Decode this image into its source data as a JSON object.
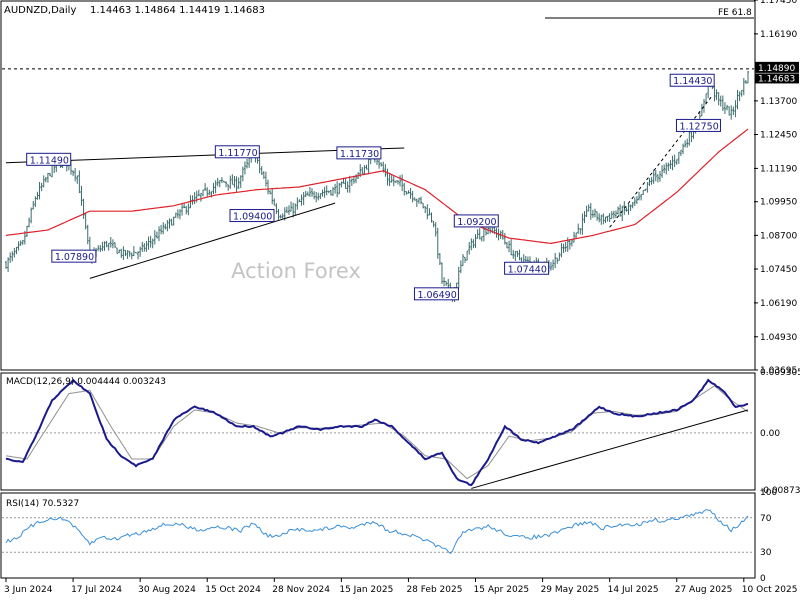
{
  "header": {
    "symbol": "AUDNZD,Daily",
    "ohlc": "1.14463 1.14864 1.14419 1.14683"
  },
  "watermark": "Action Forex",
  "colors": {
    "candle": "#3a6b6b",
    "ma": "#e0202a",
    "macd_line": "#1a1a8c",
    "macd_signal": "#909090",
    "rsi_line": "#3a8fd8",
    "label_box": "#1a1a8c",
    "price_marker": "#000000"
  },
  "chart_data": [
    {
      "type": "candlestick",
      "name": "price",
      "ylim": [
        1.03695,
        1.1745
      ],
      "y_ticks": [
        "1.17450",
        "1.16190",
        "1.14890",
        "1.13700",
        "1.12450",
        "1.11190",
        "1.09950",
        "1.08700",
        "1.07450",
        "1.06190",
        "1.04930",
        "1.03695"
      ],
      "current_price_label": "1.14890",
      "last_price_label": "1.14683",
      "fib_label": "FE 61.8",
      "fib_level": 1.1678,
      "price_keypoints": [
        [
          0,
          1.0765
        ],
        [
          8,
          1.084
        ],
        [
          14,
          1.101
        ],
        [
          22,
          1.1118
        ],
        [
          28,
          1.1149
        ],
        [
          34,
          1.109
        ],
        [
          40,
          1.0789
        ],
        [
          48,
          1.084
        ],
        [
          56,
          1.08
        ],
        [
          64,
          1.081
        ],
        [
          72,
          1.087
        ],
        [
          80,
          1.093
        ],
        [
          88,
          1.099
        ],
        [
          95,
          1.103
        ],
        [
          103,
          1.107
        ],
        [
          110,
          1.106
        ],
        [
          118,
          1.1177
        ],
        [
          124,
          1.106
        ],
        [
          130,
          1.095
        ],
        [
          136,
          1.096
        ],
        [
          142,
          1.101
        ],
        [
          150,
          1.103
        ],
        [
          157,
          1.104
        ],
        [
          163,
          1.106
        ],
        [
          170,
          1.111
        ],
        [
          176,
          1.1173
        ],
        [
          182,
          1.108
        ],
        [
          188,
          1.106
        ],
        [
          194,
          1.102
        ],
        [
          200,
          1.097
        ],
        [
          204,
          1.092
        ],
        [
          208,
          1.07
        ],
        [
          213,
          1.0649
        ],
        [
          218,
          1.078
        ],
        [
          224,
          1.086
        ],
        [
          230,
          1.09
        ],
        [
          236,
          1.087
        ],
        [
          242,
          1.08
        ],
        [
          248,
          1.077
        ],
        [
          254,
          1.0765
        ],
        [
          260,
          1.076
        ],
        [
          266,
          1.082
        ],
        [
          272,
          1.088
        ],
        [
          278,
          1.096
        ],
        [
          284,
          1.093
        ],
        [
          290,
          1.095
        ],
        [
          296,
          1.0965
        ],
        [
          302,
          1.1
        ],
        [
          308,
          1.108
        ],
        [
          314,
          1.111
        ],
        [
          320,
          1.116
        ],
        [
          326,
          1.124
        ],
        [
          331,
          1.13
        ],
        [
          335,
          1.1443
        ],
        [
          340,
          1.137
        ],
        [
          346,
          1.132
        ],
        [
          350,
          1.14
        ],
        [
          354,
          1.1468
        ]
      ],
      "ma": [
        [
          0,
          1.087
        ],
        [
          20,
          1.089
        ],
        [
          40,
          1.096
        ],
        [
          60,
          1.096
        ],
        [
          80,
          1.098
        ],
        [
          100,
          1.102
        ],
        [
          120,
          1.104
        ],
        [
          140,
          1.105
        ],
        [
          160,
          1.108
        ],
        [
          180,
          1.111
        ],
        [
          200,
          1.104
        ],
        [
          220,
          1.092
        ],
        [
          240,
          1.086
        ],
        [
          260,
          1.084
        ],
        [
          280,
          1.087
        ],
        [
          300,
          1.091
        ],
        [
          320,
          1.103
        ],
        [
          340,
          1.118
        ],
        [
          354,
          1.1265
        ]
      ],
      "labels": [
        {
          "text": "1.11490",
          "i": 28,
          "price": 1.1149
        },
        {
          "text": "1.07890",
          "i": 40,
          "price": 1.0789
        },
        {
          "text": "1.11770",
          "i": 118,
          "price": 1.1177
        },
        {
          "text": "1.09400",
          "i": 125,
          "price": 1.094
        },
        {
          "text": "1.11730",
          "i": 176,
          "price": 1.1173
        },
        {
          "text": "1.09200",
          "i": 232,
          "price": 1.092
        },
        {
          "text": "1.06490",
          "i": 213,
          "price": 1.0649
        },
        {
          "text": "1.07440",
          "i": 256,
          "price": 1.0744
        },
        {
          "text": "1.14430",
          "i": 335,
          "price": 1.1443
        },
        {
          "text": "1.12750",
          "i": 338,
          "price": 1.1275
        }
      ]
    },
    {
      "type": "line",
      "name": "MACD(12,26,9) 0.004444 0.003243",
      "title": "MACD(12,26,9) 0.004444 0.003243",
      "ylim": [
        -0.008737,
        0.009305
      ],
      "y_ticks": [
        "0.009305",
        "0.00",
        "-0.008737"
      ],
      "macd": [
        [
          0,
          -0.004
        ],
        [
          8,
          -0.0045
        ],
        [
          15,
          0.0
        ],
        [
          22,
          0.005
        ],
        [
          32,
          0.008
        ],
        [
          40,
          0.006
        ],
        [
          48,
          -0.001
        ],
        [
          55,
          -0.0035
        ],
        [
          62,
          -0.005
        ],
        [
          70,
          -0.004
        ],
        [
          80,
          0.002
        ],
        [
          90,
          0.004
        ],
        [
          100,
          0.003
        ],
        [
          110,
          0.001
        ],
        [
          118,
          0.001
        ],
        [
          126,
          -0.0005
        ],
        [
          132,
          0.0
        ],
        [
          140,
          0.001
        ],
        [
          150,
          0.0005
        ],
        [
          160,
          0.001
        ],
        [
          170,
          0.001
        ],
        [
          176,
          0.002
        ],
        [
          184,
          0.001
        ],
        [
          192,
          -0.0015
        ],
        [
          200,
          -0.004
        ],
        [
          208,
          -0.003
        ],
        [
          215,
          -0.007
        ],
        [
          222,
          -0.008
        ],
        [
          230,
          -0.004
        ],
        [
          238,
          0.001
        ],
        [
          246,
          -0.001
        ],
        [
          254,
          -0.0015
        ],
        [
          262,
          -0.0005
        ],
        [
          270,
          0.0005
        ],
        [
          276,
          0.002
        ],
        [
          283,
          0.004
        ],
        [
          290,
          0.003
        ],
        [
          300,
          0.0025
        ],
        [
          310,
          0.003
        ],
        [
          320,
          0.0035
        ],
        [
          328,
          0.005
        ],
        [
          335,
          0.008
        ],
        [
          342,
          0.0065
        ],
        [
          348,
          0.004
        ],
        [
          354,
          0.0044
        ]
      ],
      "signal": [
        [
          0,
          -0.0035
        ],
        [
          10,
          -0.004
        ],
        [
          20,
          0.001
        ],
        [
          30,
          0.006
        ],
        [
          40,
          0.0065
        ],
        [
          50,
          0.001
        ],
        [
          60,
          -0.004
        ],
        [
          70,
          -0.004
        ],
        [
          80,
          0.001
        ],
        [
          90,
          0.0035
        ],
        [
          100,
          0.003
        ],
        [
          110,
          0.0015
        ],
        [
          120,
          0.001
        ],
        [
          130,
          0.0
        ],
        [
          140,
          0.0008
        ],
        [
          150,
          0.0007
        ],
        [
          160,
          0.001
        ],
        [
          170,
          0.0012
        ],
        [
          180,
          0.0015
        ],
        [
          190,
          -0.0005
        ],
        [
          200,
          -0.0035
        ],
        [
          210,
          -0.004
        ],
        [
          220,
          -0.007
        ],
        [
          230,
          -0.005
        ],
        [
          240,
          -0.0005
        ],
        [
          250,
          -0.0012
        ],
        [
          260,
          -0.0008
        ],
        [
          270,
          0.0002
        ],
        [
          280,
          0.003
        ],
        [
          290,
          0.0033
        ],
        [
          300,
          0.0027
        ],
        [
          310,
          0.0028
        ],
        [
          320,
          0.0033
        ],
        [
          330,
          0.0055
        ],
        [
          338,
          0.0072
        ],
        [
          346,
          0.005
        ],
        [
          354,
          0.0032
        ]
      ],
      "trendline": [
        [
          222,
          -0.0085
        ],
        [
          354,
          0.0035
        ]
      ]
    },
    {
      "type": "line",
      "name": "RSI(14) 70.5327",
      "title": "RSI(14) 70.5327",
      "ylim": [
        0,
        100
      ],
      "y_ticks": [
        "100",
        "70",
        "30",
        "0"
      ],
      "levels": [
        70,
        30
      ],
      "rsi": [
        [
          0,
          42
        ],
        [
          6,
          48
        ],
        [
          12,
          60
        ],
        [
          18,
          67
        ],
        [
          24,
          70
        ],
        [
          30,
          66
        ],
        [
          36,
          50
        ],
        [
          40,
          40
        ],
        [
          46,
          48
        ],
        [
          52,
          45
        ],
        [
          58,
          50
        ],
        [
          64,
          52
        ],
        [
          70,
          58
        ],
        [
          76,
          62
        ],
        [
          82,
          63
        ],
        [
          88,
          58
        ],
        [
          94,
          56
        ],
        [
          100,
          60
        ],
        [
          106,
          58
        ],
        [
          112,
          55
        ],
        [
          118,
          64
        ],
        [
          124,
          50
        ],
        [
          130,
          48
        ],
        [
          136,
          55
        ],
        [
          142,
          57
        ],
        [
          148,
          55
        ],
        [
          154,
          58
        ],
        [
          160,
          60
        ],
        [
          166,
          58
        ],
        [
          172,
          64
        ],
        [
          176,
          66
        ],
        [
          182,
          55
        ],
        [
          188,
          53
        ],
        [
          194,
          49
        ],
        [
          200,
          44
        ],
        [
          206,
          36
        ],
        [
          212,
          30
        ],
        [
          218,
          52
        ],
        [
          224,
          57
        ],
        [
          230,
          60
        ],
        [
          236,
          54
        ],
        [
          242,
          48
        ],
        [
          248,
          47
        ],
        [
          254,
          48
        ],
        [
          260,
          50
        ],
        [
          266,
          56
        ],
        [
          272,
          62
        ],
        [
          278,
          65
        ],
        [
          284,
          58
        ],
        [
          290,
          60
        ],
        [
          296,
          63
        ],
        [
          302,
          62
        ],
        [
          308,
          68
        ],
        [
          314,
          66
        ],
        [
          320,
          70
        ],
        [
          326,
          72
        ],
        [
          332,
          76
        ],
        [
          336,
          80
        ],
        [
          340,
          68
        ],
        [
          346,
          56
        ],
        [
          350,
          62
        ],
        [
          354,
          70.5
        ]
      ]
    }
  ],
  "x_axis": {
    "tick_labels": [
      "3 Jun 2024",
      "17 Jul 2024",
      "30 Aug 2024",
      "15 Oct 2024",
      "28 Nov 2024",
      "15 Jan 2025",
      "28 Feb 2025",
      "15 Apr 2025",
      "29 May 2025",
      "14 Jul 2025",
      "27 Aug 2025",
      "10 Oct 2025"
    ],
    "tick_index": [
      0,
      32,
      64,
      96,
      128,
      160,
      192,
      224,
      256,
      288,
      320,
      352
    ]
  },
  "trendlines": [
    {
      "name": "upper-resistance",
      "points": [
        [
          0,
          1.114
        ],
        [
          190,
          1.1195
        ]
      ]
    },
    {
      "name": "lower-support",
      "points": [
        [
          40,
          1.071
        ],
        [
          157,
          1.099
        ]
      ]
    },
    {
      "name": "channel-dash",
      "points": [
        [
          288,
          1.09
        ],
        [
          337,
          1.139
        ]
      ]
    }
  ]
}
